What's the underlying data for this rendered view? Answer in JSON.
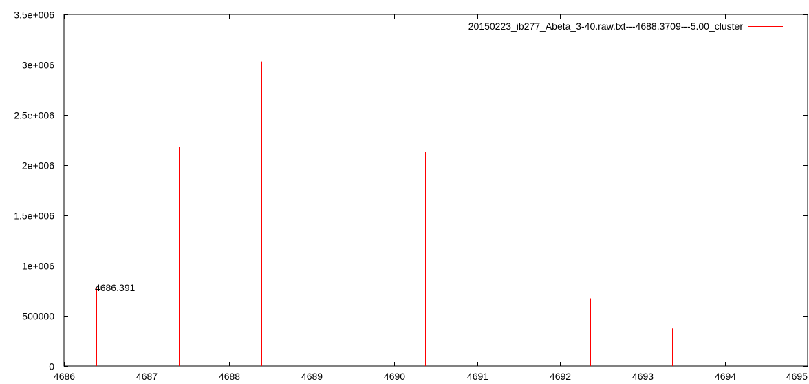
{
  "chart_data": {
    "type": "bar",
    "title": "",
    "xlabel": "",
    "ylabel": "",
    "xlim": [
      4686,
      4695
    ],
    "ylim": [
      0,
      3500000
    ],
    "x_ticks": [
      4686,
      4687,
      4688,
      4689,
      4690,
      4691,
      4692,
      4693,
      4694,
      4695
    ],
    "x_tick_labels": [
      "4686",
      "4687",
      "4688",
      "4689",
      "4690",
      "4691",
      "4692",
      "4693",
      "4694",
      "4695"
    ],
    "y_ticks": [
      0,
      500000,
      1000000,
      1500000,
      2000000,
      2500000,
      3000000,
      3500000
    ],
    "y_tick_labels": [
      "0",
      "500000",
      "1e+006",
      "1.5e+006",
      "2e+006",
      "2.5e+006",
      "3e+006",
      "3.5e+006"
    ],
    "grid": false,
    "legend_position": "top-right",
    "series": [
      {
        "name": "20150223_ib277_Abeta_3-40.raw.txt---4688.3709---5.00_cluster",
        "color": "#ff0000",
        "style": "impulses",
        "x": [
          4686.391,
          4687.39,
          4688.39,
          4689.37,
          4690.37,
          4691.37,
          4692.37,
          4693.36,
          4694.36
        ],
        "values": [
          780000,
          2180000,
          3030000,
          2870000,
          2130000,
          1290000,
          675000,
          375000,
          125000
        ]
      }
    ],
    "annotations": [
      {
        "text": "4686.391",
        "x": 4686.391,
        "y": 780000
      }
    ]
  }
}
